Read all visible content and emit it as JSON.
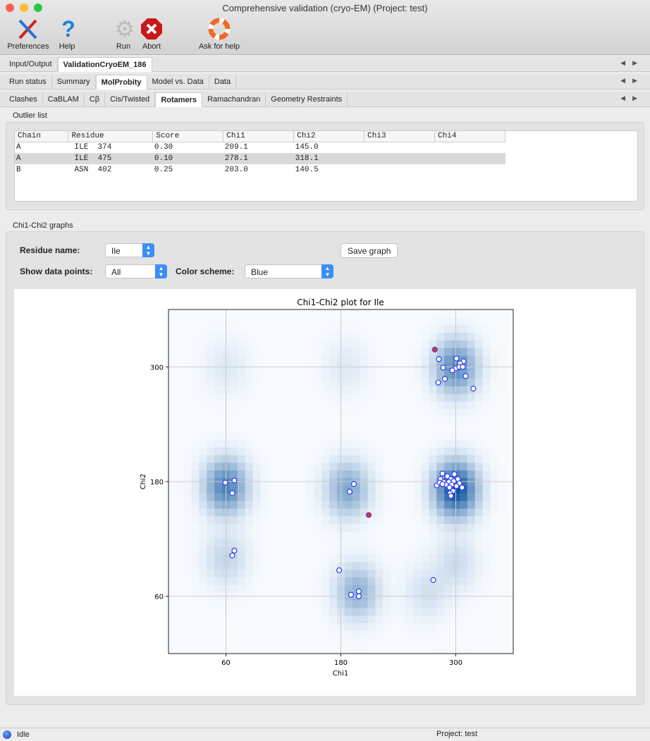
{
  "window": {
    "title": "Comprehensive validation (cryo-EM) (Project: test)"
  },
  "toolbar": {
    "preferences": "Preferences",
    "help": "Help",
    "run": "Run",
    "abort": "Abort",
    "ask_for_help": "Ask for help"
  },
  "tabs_level1": [
    {
      "label": "Input/Output",
      "active": false
    },
    {
      "label": "ValidationCryoEM_186",
      "active": true
    }
  ],
  "tabs_level2": [
    {
      "label": "Run status",
      "active": false
    },
    {
      "label": "Summary",
      "active": false
    },
    {
      "label": "MolProbity",
      "active": true
    },
    {
      "label": "Model vs. Data",
      "active": false
    },
    {
      "label": "Data",
      "active": false
    }
  ],
  "tabs_level3": [
    {
      "label": "Clashes",
      "active": false
    },
    {
      "label": "CaBLAM",
      "active": false
    },
    {
      "label": "Cβ",
      "active": false
    },
    {
      "label": "Cis/Twisted",
      "active": false
    },
    {
      "label": "Rotamers",
      "active": true
    },
    {
      "label": "Ramachandran",
      "active": false
    },
    {
      "label": "Geometry Restraints",
      "active": false
    }
  ],
  "outliers": {
    "group_label": "Outlier list",
    "columns": [
      "Chain",
      "Residue",
      "Score",
      "Chi1",
      "Chi2",
      "Chi3",
      "Chi4"
    ],
    "rows": [
      [
        "A",
        " ILE  374",
        "0.30",
        "209.1",
        "145.0",
        "",
        ""
      ],
      [
        "A",
        " ILE  475",
        "0.10",
        "278.1",
        "318.1",
        "",
        ""
      ],
      [
        "B",
        " ASN  402",
        "0.25",
        "203.0",
        "140.5",
        "",
        ""
      ]
    ],
    "selected_row": 1
  },
  "graphs": {
    "group_label": "Chi1-Chi2 graphs",
    "residue_name_label": "Residue name:",
    "residue_name_value": "Ile",
    "save_graph": "Save graph",
    "show_points_label": "Show data points:",
    "show_points_value": "All",
    "color_scheme_label": "Color scheme:",
    "color_scheme_value": "Blue"
  },
  "chart_data": {
    "type": "scatter",
    "title": "Chi1-Chi2 plot for Ile",
    "xlabel": "Chi1",
    "ylabel": "Chi2",
    "xlim": [
      0,
      360
    ],
    "ylim": [
      0,
      360
    ],
    "xticks": [
      60,
      180,
      300
    ],
    "yticks": [
      60,
      180,
      300
    ],
    "grid": true,
    "background": "heatmap",
    "density_peaks": [
      [
        300,
        172,
        1.0
      ],
      [
        300,
        300,
        0.6
      ],
      [
        60,
        175,
        0.65
      ],
      [
        187,
        172,
        0.42
      ],
      [
        197,
        65,
        0.35
      ],
      [
        60,
        100,
        0.15
      ],
      [
        300,
        95,
        0.12
      ],
      [
        270,
        65,
        0.1
      ],
      [
        60,
        300,
        0.06
      ],
      [
        185,
        300,
        0.06
      ]
    ],
    "colors": {
      "point_edge": "#2b3cf0",
      "point_fill": "#ffffff",
      "outlier_fill": "#f02a2a",
      "heat_high": "#08519c",
      "grid": "#cccccc"
    },
    "points": [
      [
        282.4,
        308.1
      ],
      [
        300.7,
        308.8
      ],
      [
        308.1,
        305.8
      ],
      [
        304.4,
        303.6
      ],
      [
        286.8,
        299.2
      ],
      [
        300.0,
        298.5
      ],
      [
        303.7,
        300.0
      ],
      [
        307.3,
        300.0
      ],
      [
        296.3,
        296.3
      ],
      [
        310.3,
        290.4
      ],
      [
        288.6,
        287.4
      ],
      [
        281.7,
        283.7
      ],
      [
        318.3,
        277.2
      ],
      [
        286.1,
        188.4
      ],
      [
        298.5,
        187.7
      ],
      [
        291.2,
        185.5
      ],
      [
        283.9,
        182.6
      ],
      [
        294.9,
        182.6
      ],
      [
        302.2,
        182.6
      ],
      [
        280.2,
        176.0
      ],
      [
        283.1,
        178.9
      ],
      [
        287.5,
        179.6
      ],
      [
        292.7,
        179.6
      ],
      [
        297.8,
        180.4
      ],
      [
        303.7,
        178.2
      ],
      [
        289.7,
        176.7
      ],
      [
        295.6,
        176.7
      ],
      [
        300.7,
        175.2
      ],
      [
        306.6,
        173.8
      ],
      [
        293.4,
        173.8
      ],
      [
        297.1,
        170.1
      ],
      [
        294.1,
        167.9
      ],
      [
        294.9,
        165.0
      ],
      [
        286.1,
        177.4
      ],
      [
        59.3,
        178.9
      ],
      [
        68.8,
        181.1
      ],
      [
        66.6,
        167.9
      ],
      [
        193.6,
        177.4
      ],
      [
        189.2,
        169.4
      ],
      [
        68.8,
        107.7
      ],
      [
        66.6,
        102.6
      ],
      [
        178.2,
        87.2
      ],
      [
        190.6,
        61.5
      ],
      [
        198.7,
        65.1
      ],
      [
        198.7,
        60.0
      ],
      [
        276.5,
        76.9
      ]
    ],
    "outlier_points": [
      [
        209.1,
        145.0
      ],
      [
        278.1,
        318.1
      ]
    ]
  },
  "status": {
    "state": "Idle",
    "project": "Project: test"
  }
}
